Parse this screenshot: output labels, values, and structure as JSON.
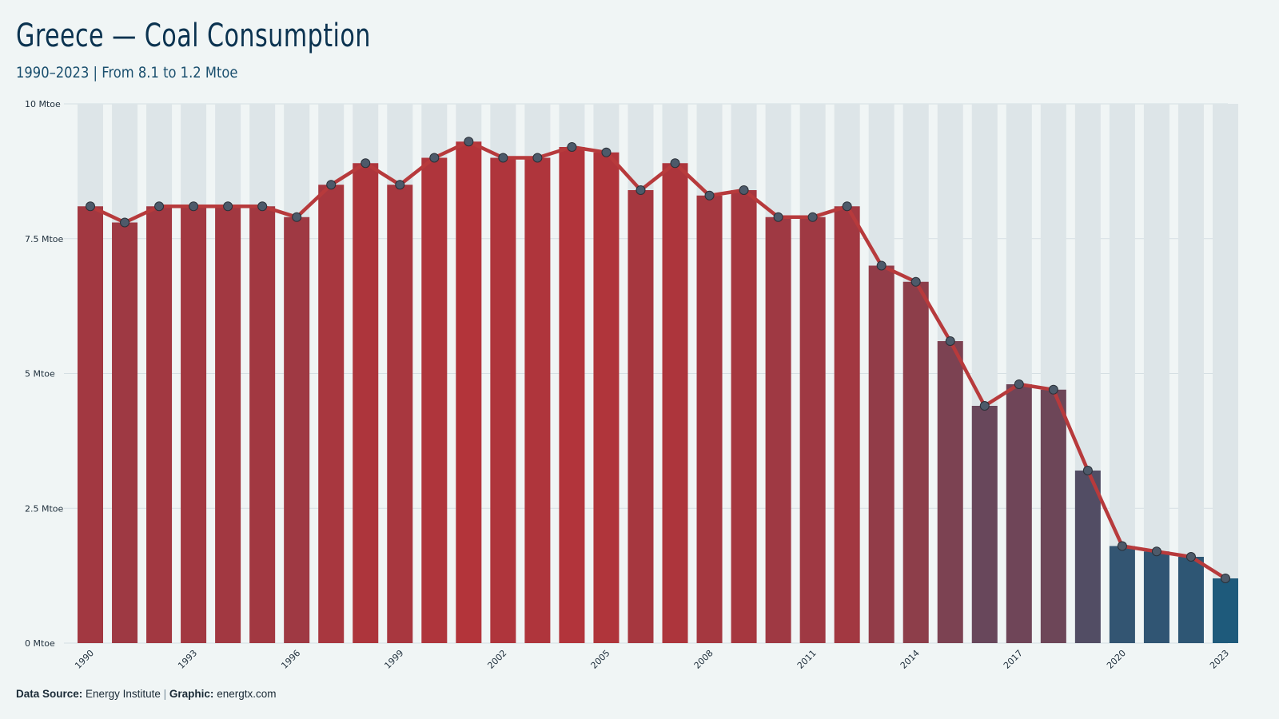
{
  "header": {
    "title": "Greece — Coal Consumption",
    "subtitle": "1990–2023 | From 8.1 to 1.2 Mtoe"
  },
  "footer": {
    "source_label": "Data Source:",
    "source_value": "Energy Institute",
    "separator": "|",
    "graphic_label": "Graphic:",
    "graphic_value": "energtx.com"
  },
  "colors": {
    "background": "#f0f5f5",
    "bar_high": "#b3343a",
    "bar_low": "#1e5a7b",
    "line": "#b73a3c",
    "marker_fill": "#4d5a6a",
    "grid": "#d5dfe3"
  },
  "chart_data": {
    "type": "bar",
    "title": "Greece — Coal Consumption",
    "subtitle": "1990–2023 | From 8.1 to 1.2 Mtoe",
    "xlabel": "",
    "ylabel": "",
    "unit": "Mtoe",
    "ylim": [
      0,
      10
    ],
    "y_ticks": [
      0,
      2.5,
      5,
      7.5,
      10
    ],
    "y_tick_labels": [
      "0 Mtoe",
      "2.5 Mtoe",
      "5 Mtoe",
      "7.5 Mtoe",
      "10 Mtoe"
    ],
    "x_tick_labels": [
      "1990",
      "1993",
      "1996",
      "1999",
      "2002",
      "2005",
      "2008",
      "2011",
      "2014",
      "2017",
      "2020",
      "2023"
    ],
    "grid": true,
    "legend": "none",
    "overlay": "line with markers",
    "categories": [
      "1990",
      "1991",
      "1992",
      "1993",
      "1994",
      "1995",
      "1996",
      "1997",
      "1998",
      "1999",
      "2000",
      "2001",
      "2002",
      "2003",
      "2004",
      "2005",
      "2006",
      "2007",
      "2008",
      "2009",
      "2010",
      "2011",
      "2012",
      "2013",
      "2014",
      "2015",
      "2016",
      "2017",
      "2018",
      "2019",
      "2020",
      "2021",
      "2022",
      "2023"
    ],
    "values": [
      8.1,
      7.8,
      8.1,
      8.1,
      8.1,
      8.1,
      7.9,
      8.5,
      8.9,
      8.5,
      9.0,
      9.3,
      9.0,
      9.0,
      9.2,
      9.1,
      8.4,
      8.9,
      8.3,
      8.4,
      7.9,
      7.9,
      8.1,
      7.0,
      6.7,
      5.6,
      4.4,
      4.8,
      4.7,
      3.2,
      1.8,
      1.7,
      1.6,
      1.2
    ]
  }
}
